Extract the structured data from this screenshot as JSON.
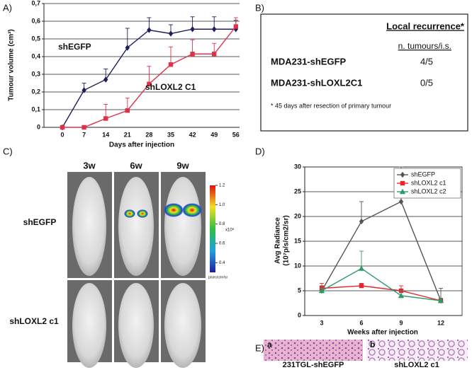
{
  "panels": {
    "a": "A)",
    "b": "B)",
    "c": "C)",
    "d": "D)",
    "e": "E)"
  },
  "chart_data": [
    {
      "type": "line",
      "ylabel": "Tumour volume (cm³)",
      "xlabel": "Days after injection",
      "categories": [
        "0",
        "7",
        "14",
        "21",
        "28",
        "35",
        "42",
        "49",
        "56"
      ],
      "series": [
        {
          "name": "shEGFP",
          "color": "#1c1f5c",
          "marker": "diamond",
          "values": [
            0,
            0.21,
            0.27,
            0.45,
            0.55,
            0.53,
            0.555,
            0.555,
            0.555
          ],
          "errors": [
            0,
            0.04,
            0.06,
            0.11,
            0.07,
            0.05,
            0.07,
            0.07,
            0.05
          ]
        },
        {
          "name": "shLOXL2 C1",
          "color": "#e0304a",
          "marker": "square",
          "values": [
            0,
            0,
            0.05,
            0.095,
            0.245,
            0.355,
            0.415,
            0.415,
            0.57
          ],
          "errors": [
            0,
            0,
            0.08,
            0.07,
            0.1,
            0.1,
            0.08,
            0.06,
            0.05
          ]
        }
      ],
      "ylim": [
        0,
        0.7
      ],
      "yticks": [
        0,
        {
          "value": 0.1,
          "label": "0,1"
        },
        {
          "value": 0.2,
          "label": "0,2"
        },
        {
          "value": 0.3,
          "label": "0,3"
        },
        {
          "value": 0.4,
          "label": "0,4"
        },
        {
          "value": 0.5,
          "label": "0,5"
        },
        {
          "value": 0.6,
          "label": "0,6"
        },
        {
          "value": 0.7,
          "label": "0,7"
        }
      ],
      "grid": true,
      "legend": "inline"
    },
    {
      "type": "line",
      "ylabel": [
        "Avg Radiance",
        "(10⁷p/s/cm2/sr)"
      ],
      "xlabel": "Weeks after injection",
      "categories": [
        "3",
        "6",
        "9",
        "12"
      ],
      "series": [
        {
          "name": "shEGFP",
          "color": "#555555",
          "marker": "diamond",
          "values": [
            5,
            19,
            23,
            3
          ],
          "errors": [
            1,
            4,
            7,
            2.5
          ]
        },
        {
          "name": "shLOXL2 c1",
          "color": "#e8242c",
          "marker": "square",
          "values": [
            5.5,
            6,
            5,
            3
          ],
          "errors": [
            1,
            0.5,
            1,
            0.5
          ]
        },
        {
          "name": "shLOXL2 c2",
          "color": "#2e9a6a",
          "marker": "triangle",
          "values": [
            5,
            9.5,
            4,
            3
          ],
          "errors": [
            0.5,
            3.5,
            1,
            0.5
          ]
        }
      ],
      "ylim": [
        0,
        30
      ],
      "yticks": [
        0,
        5,
        10,
        15,
        20,
        25,
        30
      ],
      "grid": true,
      "legend": "upper right"
    }
  ],
  "table": {
    "title": "Local recurrence*",
    "column": "n. tumours/i.s.",
    "rows": [
      [
        "MDA231-shEGFP",
        "4/5"
      ],
      [
        "MDA231-shLOXL2C1",
        "0/5"
      ]
    ],
    "footnote": "* 45 days after resection of primary tumour"
  },
  "imaging": {
    "columns": [
      "3w",
      "6w",
      "9w"
    ],
    "rows": [
      "shEGFP",
      "shLOXL2 c1"
    ],
    "colorbar": {
      "lim": [
        0.3,
        1.2
      ],
      "ticks": [
        1.2,
        {
          "value": 1,
          "label": "1.0"
        },
        0.8,
        0.6,
        0.4
      ],
      "scale": "x10⁸",
      "unit": "p/sec/cm²/sr"
    }
  },
  "histology": [
    {
      "letter": "a",
      "caption": "231TGL-shEGFP"
    },
    {
      "letter": "b",
      "caption": "shLOXL2 c1"
    }
  ]
}
